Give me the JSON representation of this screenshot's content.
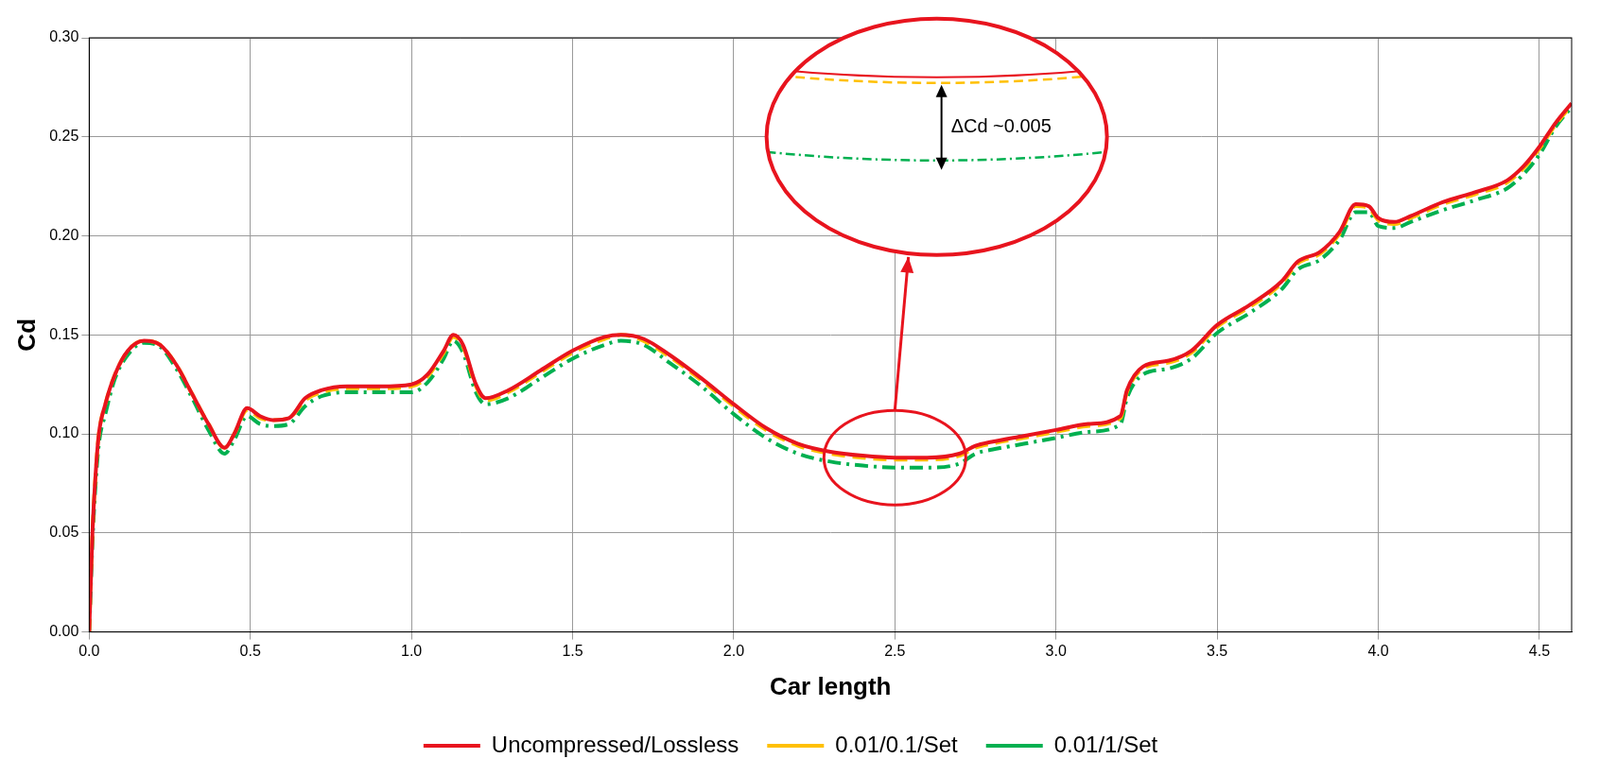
{
  "chart_data": {
    "type": "line",
    "x_label": "Car length",
    "y_label": "Cd",
    "annotation": "ΔCd ~0.005",
    "xlim": [
      0,
      4.6
    ],
    "xticks": [
      {
        "value": 0,
        "label": "0.0"
      },
      0.5,
      {
        "value": 1,
        "label": "1.0"
      },
      1.5,
      {
        "value": 2,
        "label": "2.0"
      },
      2.5,
      {
        "value": 3,
        "label": "3.0"
      },
      3.5,
      {
        "value": 4,
        "label": "4.0"
      },
      4.5
    ],
    "ylim": [
      0,
      0.3
    ],
    "yticks": [
      {
        "value": 0,
        "label": "0.00"
      },
      0.05,
      {
        "value": 0.1,
        "label": "0.10"
      },
      0.15,
      {
        "value": 0.2,
        "label": "0.20"
      },
      0.25,
      {
        "value": 0.3,
        "label": "0.30"
      }
    ],
    "grid": true,
    "legend": "bottom",
    "x": [
      0,
      0.01,
      0.02,
      0.03,
      0.05,
      0.08,
      0.12,
      0.17,
      0.22,
      0.27,
      0.32,
      0.37,
      0.42,
      0.45,
      0.49,
      0.53,
      0.57,
      0.62,
      0.67,
      0.72,
      0.8,
      0.9,
      1.0,
      1.05,
      1.1,
      1.13,
      1.16,
      1.2,
      1.23,
      1.3,
      1.4,
      1.5,
      1.6,
      1.65,
      1.72,
      1.8,
      1.9,
      2.0,
      2.1,
      2.2,
      2.3,
      2.4,
      2.5,
      2.6,
      2.7,
      2.75,
      2.8,
      2.9,
      3.0,
      3.1,
      3.2,
      3.22,
      3.27,
      3.35,
      3.42,
      3.5,
      3.6,
      3.7,
      3.75,
      3.82,
      3.88,
      3.93,
      3.97,
      4.0,
      4.05,
      4.1,
      4.2,
      4.3,
      4.4,
      4.45,
      4.5,
      4.55,
      4.6
    ],
    "series": [
      {
        "name": "Uncompressed/Lossless",
        "color": "#e8141e",
        "line_style": "solid",
        "values": [
          0,
          0.05,
          0.08,
          0.1,
          0.115,
          0.13,
          0.142,
          0.147,
          0.145,
          0.135,
          0.12,
          0.105,
          0.093,
          0.1,
          0.113,
          0.109,
          0.107,
          0.108,
          0.118,
          0.122,
          0.124,
          0.124,
          0.125,
          0.13,
          0.142,
          0.15,
          0.145,
          0.125,
          0.118,
          0.122,
          0.132,
          0.142,
          0.149,
          0.15,
          0.148,
          0.14,
          0.128,
          0.115,
          0.103,
          0.095,
          0.091,
          0.089,
          0.088,
          0.088,
          0.09,
          0.094,
          0.096,
          0.099,
          0.102,
          0.105,
          0.109,
          0.122,
          0.134,
          0.137,
          0.142,
          0.155,
          0.165,
          0.177,
          0.187,
          0.192,
          0.202,
          0.216,
          0.215,
          0.209,
          0.207,
          0.21,
          0.217,
          0.222,
          0.228,
          0.235,
          0.245,
          0.257,
          0.267
        ]
      },
      {
        "name": "0.01/0.1/Set",
        "color": "#ffc000",
        "line_style": "dashed",
        "values": [
          0,
          0.05,
          0.08,
          0.1,
          0.115,
          0.13,
          0.142,
          0.147,
          0.145,
          0.135,
          0.12,
          0.105,
          0.093,
          0.1,
          0.112,
          0.108,
          0.107,
          0.108,
          0.117,
          0.121,
          0.123,
          0.123,
          0.124,
          0.129,
          0.141,
          0.149,
          0.144,
          0.124,
          0.117,
          0.121,
          0.131,
          0.141,
          0.148,
          0.15,
          0.147,
          0.139,
          0.127,
          0.114,
          0.102,
          0.094,
          0.09,
          0.088,
          0.087,
          0.087,
          0.089,
          0.093,
          0.095,
          0.098,
          0.101,
          0.104,
          0.108,
          0.121,
          0.133,
          0.136,
          0.141,
          0.154,
          0.164,
          0.176,
          0.186,
          0.191,
          0.201,
          0.215,
          0.214,
          0.208,
          0.206,
          0.209,
          0.216,
          0.221,
          0.227,
          0.234,
          0.244,
          0.256,
          0.266
        ]
      },
      {
        "name": "0.01/1/Set",
        "color": "#00b050",
        "line_style": "dashdot",
        "values": [
          0,
          0.045,
          0.075,
          0.095,
          0.11,
          0.128,
          0.14,
          0.146,
          0.144,
          0.133,
          0.118,
          0.102,
          0.09,
          0.097,
          0.109,
          0.105,
          0.104,
          0.105,
          0.114,
          0.119,
          0.121,
          0.121,
          0.121,
          0.126,
          0.138,
          0.147,
          0.141,
          0.121,
          0.115,
          0.118,
          0.128,
          0.138,
          0.145,
          0.147,
          0.145,
          0.136,
          0.124,
          0.11,
          0.098,
          0.09,
          0.086,
          0.084,
          0.083,
          0.083,
          0.085,
          0.09,
          0.092,
          0.095,
          0.098,
          0.101,
          0.105,
          0.118,
          0.13,
          0.133,
          0.138,
          0.151,
          0.161,
          0.173,
          0.183,
          0.188,
          0.198,
          0.212,
          0.212,
          0.205,
          0.204,
          0.207,
          0.213,
          0.218,
          0.224,
          0.231,
          0.241,
          0.255,
          0.265
        ]
      }
    ]
  }
}
